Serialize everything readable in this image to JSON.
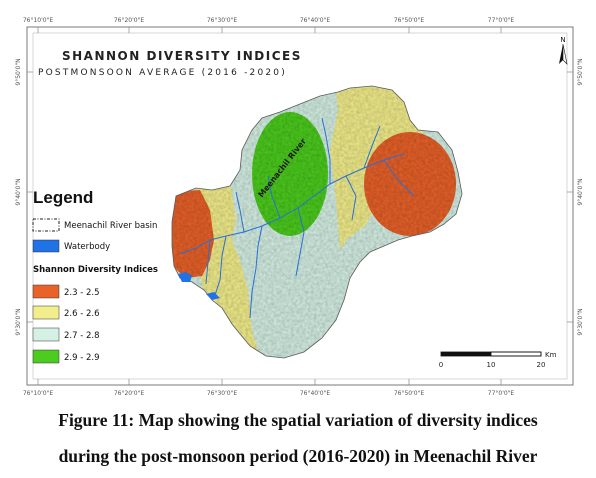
{
  "map": {
    "title": "SHANNON DIVERSITY INDICES",
    "subtitle": "POSTMONSOON AVERAGE (2016 -2020)",
    "river_label": "Meenachil River",
    "north_label": "N",
    "longitude_labels": [
      "76°10'0\"E",
      "76°20'0\"E",
      "76°30'0\"E",
      "76°40'0\"E",
      "76°50'0\"E",
      "77°0'0\"E"
    ],
    "latitude_labels": [
      "9°50'0\"N",
      "9°40'0\"N",
      "9°30'0\"N"
    ],
    "legend": {
      "title": "Legend",
      "basin_label": "Meenachil River basin",
      "waterbody_label": "Waterbody",
      "indices_heading": "Shannon Diversity Indices",
      "classes": [
        {
          "label": "2.3 - 2.5",
          "color": "#e8622a"
        },
        {
          "label": "2.6 - 2.6",
          "color": "#f3ee8c"
        },
        {
          "label": "2.7 - 2.8",
          "color": "#d5f0e4"
        },
        {
          "label": "2.9 - 2.9",
          "color": "#4ccc1e"
        }
      ],
      "waterbody_color": "#1f73e6"
    },
    "scale_bar": {
      "unit": "Km",
      "ticks": [
        "0",
        "10",
        "20"
      ]
    }
  },
  "caption": {
    "line1": "Figure 11: Map showing the spatial variation of diversity indices",
    "line2": "during the post-monsoon period (2016-2020) in Meenachil River"
  }
}
